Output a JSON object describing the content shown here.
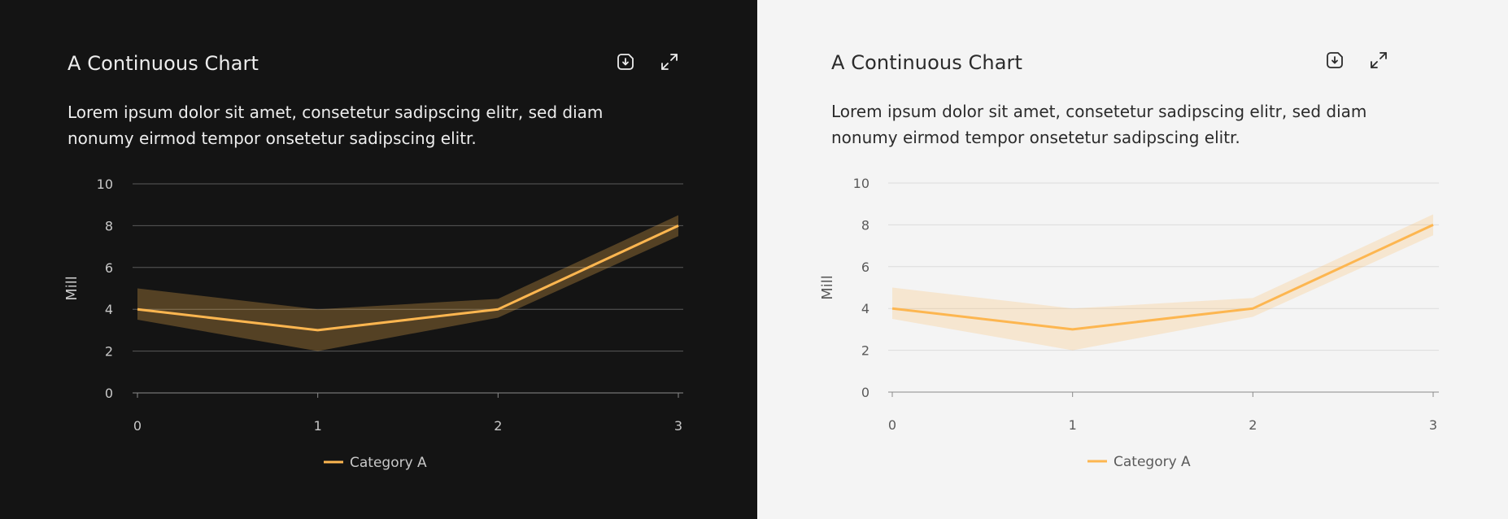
{
  "panels": [
    {
      "theme": "dark",
      "title": "A Continuous Chart",
      "description": "Lorem ipsum dolor sit amet, consetetur sadipscing elitr, sed diam nonumy eirmod tempor onsetetur sadipscing elitr.",
      "toolbar": {
        "download_icon": "download-icon",
        "expand_icon": "expand-icon"
      },
      "colors": {
        "background": "#141414",
        "text": "#ededed",
        "axis_text": "#c8c8c8",
        "grid": "#5a5a5a",
        "axis": "#8a8a8a",
        "line": "#fdb650",
        "band": "#fdb650",
        "band_opacity": 0.28
      }
    },
    {
      "theme": "light",
      "title": "A Continuous Chart",
      "description": "Lorem ipsum dolor sit amet, consetetur sadipscing elitr, sed diam nonumy eirmod tempor onsetetur sadipscing elitr.",
      "toolbar": {
        "download_icon": "download-icon",
        "expand_icon": "expand-icon"
      },
      "colors": {
        "background": "#f4f4f4",
        "text": "#2b2b2b",
        "axis_text": "#5a5a5a",
        "grid": "#dcdcdc",
        "axis": "#8a8a8a",
        "line": "#fdb650",
        "band": "#fdb650",
        "band_opacity": 0.22
      }
    }
  ],
  "chart_data": [
    {
      "type": "line",
      "title": "A Continuous Chart",
      "x": [
        0,
        1,
        2,
        3
      ],
      "xticks": [
        "0",
        "1",
        "2",
        "3"
      ],
      "ylabel": "Mill",
      "ylim": [
        0,
        10
      ],
      "yticks": [
        0,
        2,
        4,
        6,
        8,
        10
      ],
      "grid": true,
      "legend_position": "bottom-center",
      "series": [
        {
          "name": "Category A",
          "values": [
            4,
            3,
            4,
            8
          ],
          "lower": [
            3.5,
            2,
            3.6,
            7.5
          ],
          "upper": [
            5,
            4,
            4.5,
            8.5
          ]
        }
      ]
    },
    {
      "type": "line",
      "title": "A Continuous Chart",
      "x": [
        0,
        1,
        2,
        3
      ],
      "xticks": [
        "0",
        "1",
        "2",
        "3"
      ],
      "ylabel": "Mill",
      "ylim": [
        0,
        10
      ],
      "yticks": [
        0,
        2,
        4,
        6,
        8,
        10
      ],
      "grid": true,
      "legend_position": "bottom-center",
      "series": [
        {
          "name": "Category A",
          "values": [
            4,
            3,
            4,
            8
          ],
          "lower": [
            3.5,
            2,
            3.6,
            7.5
          ],
          "upper": [
            5,
            4,
            4.5,
            8.5
          ]
        }
      ]
    }
  ]
}
